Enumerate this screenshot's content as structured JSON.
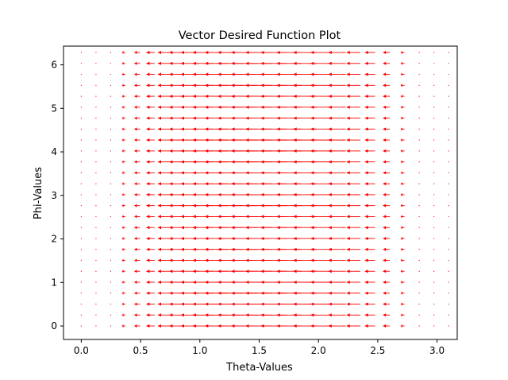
{
  "chart_data": {
    "type": "quiver",
    "title": "Vector Desired Function Plot",
    "xlabel": "Theta-Values",
    "ylabel": "Phi-Values",
    "xlim": [
      -0.15,
      3.17
    ],
    "ylim": [
      -0.31,
      6.43
    ],
    "x_ticks": [
      {
        "value": 0.0,
        "label": "0.0"
      },
      {
        "value": 0.5,
        "label": "0.5"
      },
      {
        "value": 1.0,
        "label": "1.0"
      },
      {
        "value": 1.5,
        "label": "1.5"
      },
      {
        "value": 2.0,
        "label": "2.0"
      },
      {
        "value": 2.5,
        "label": "2.5"
      },
      {
        "value": 3.0,
        "label": "3.0"
      }
    ],
    "y_ticks": [
      {
        "value": 0,
        "label": "0"
      },
      {
        "value": 1,
        "label": "1"
      },
      {
        "value": 2,
        "label": "2"
      },
      {
        "value": 3,
        "label": "3"
      },
      {
        "value": 4,
        "label": "4"
      },
      {
        "value": 5,
        "label": "5"
      },
      {
        "value": 6,
        "label": "6"
      }
    ],
    "grid": false,
    "arrow_color": "#ff0000",
    "field": {
      "direction": "negative-x",
      "x": [
        0.0,
        0.1239,
        0.2478,
        0.3717,
        0.4956,
        0.6195,
        0.7434,
        0.8673,
        0.9912,
        1.1151,
        1.239,
        1.3629,
        1.4868,
        1.6107,
        1.7346,
        1.8585,
        1.9824,
        2.1063,
        2.2302,
        2.3541,
        2.478,
        2.6019,
        2.7258,
        2.8497,
        2.9736,
        3.0975
      ],
      "y": [
        0.0,
        0.2513,
        0.5027,
        0.754,
        1.0053,
        1.2566,
        1.508,
        1.7593,
        2.0106,
        2.2619,
        2.5133,
        2.7646,
        3.0159,
        3.2673,
        3.5186,
        3.7699,
        4.0212,
        4.2726,
        4.5239,
        4.7752,
        5.0265,
        5.2779,
        5.5292,
        5.7805,
        6.0319,
        6.2832
      ],
      "u": [
        0.0,
        -0.0153,
        -0.0604,
        -0.1323,
        -0.2265,
        -0.3373,
        -0.4584,
        -0.5829,
        -0.7039,
        -0.8146,
        -0.9087,
        -0.9805,
        -1.0254,
        -1.0404,
        -1.024,
        -0.9767,
        -0.9009,
        -0.8005,
        -0.6809,
        -0.5487,
        -0.4111,
        -0.2757,
        -0.1503,
        -0.0416,
        0.0,
        0.0
      ],
      "v": 0
    }
  }
}
